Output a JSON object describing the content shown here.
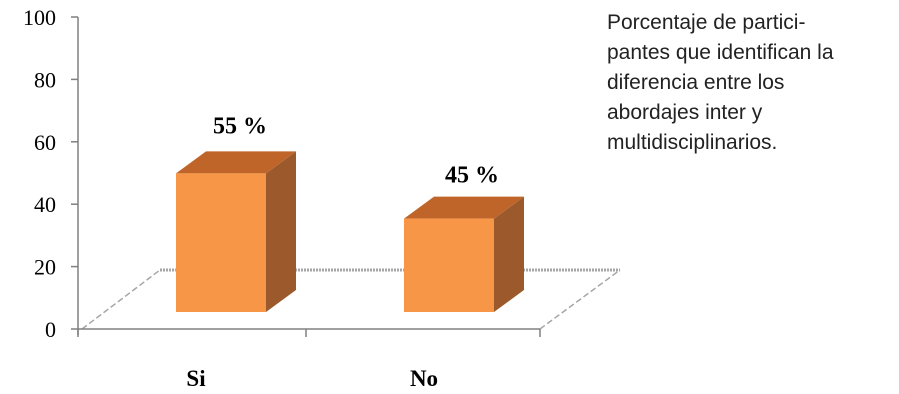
{
  "caption": "Porcentaje de partici-\npantes que identifican la\ndiferencia entre los\nabordajes inter y\nmultidisciplinarios.",
  "chart_data": {
    "type": "bar",
    "style": "3d-column",
    "categories": [
      "Si",
      "No"
    ],
    "values": [
      55,
      45
    ],
    "data_labels": [
      "55 %",
      "45 %"
    ],
    "yticks": [
      0,
      20,
      40,
      60,
      80,
      100
    ],
    "ylim": [
      0,
      100
    ],
    "title": "",
    "xlabel": "",
    "ylabel": "",
    "grid": false,
    "legend": "none",
    "colors": {
      "bar_front": "#F79646",
      "bar_top": "#C0652A",
      "bar_side": "#9C5A2C",
      "floor_line": "#A6A6A6",
      "axis": "#808080"
    }
  }
}
